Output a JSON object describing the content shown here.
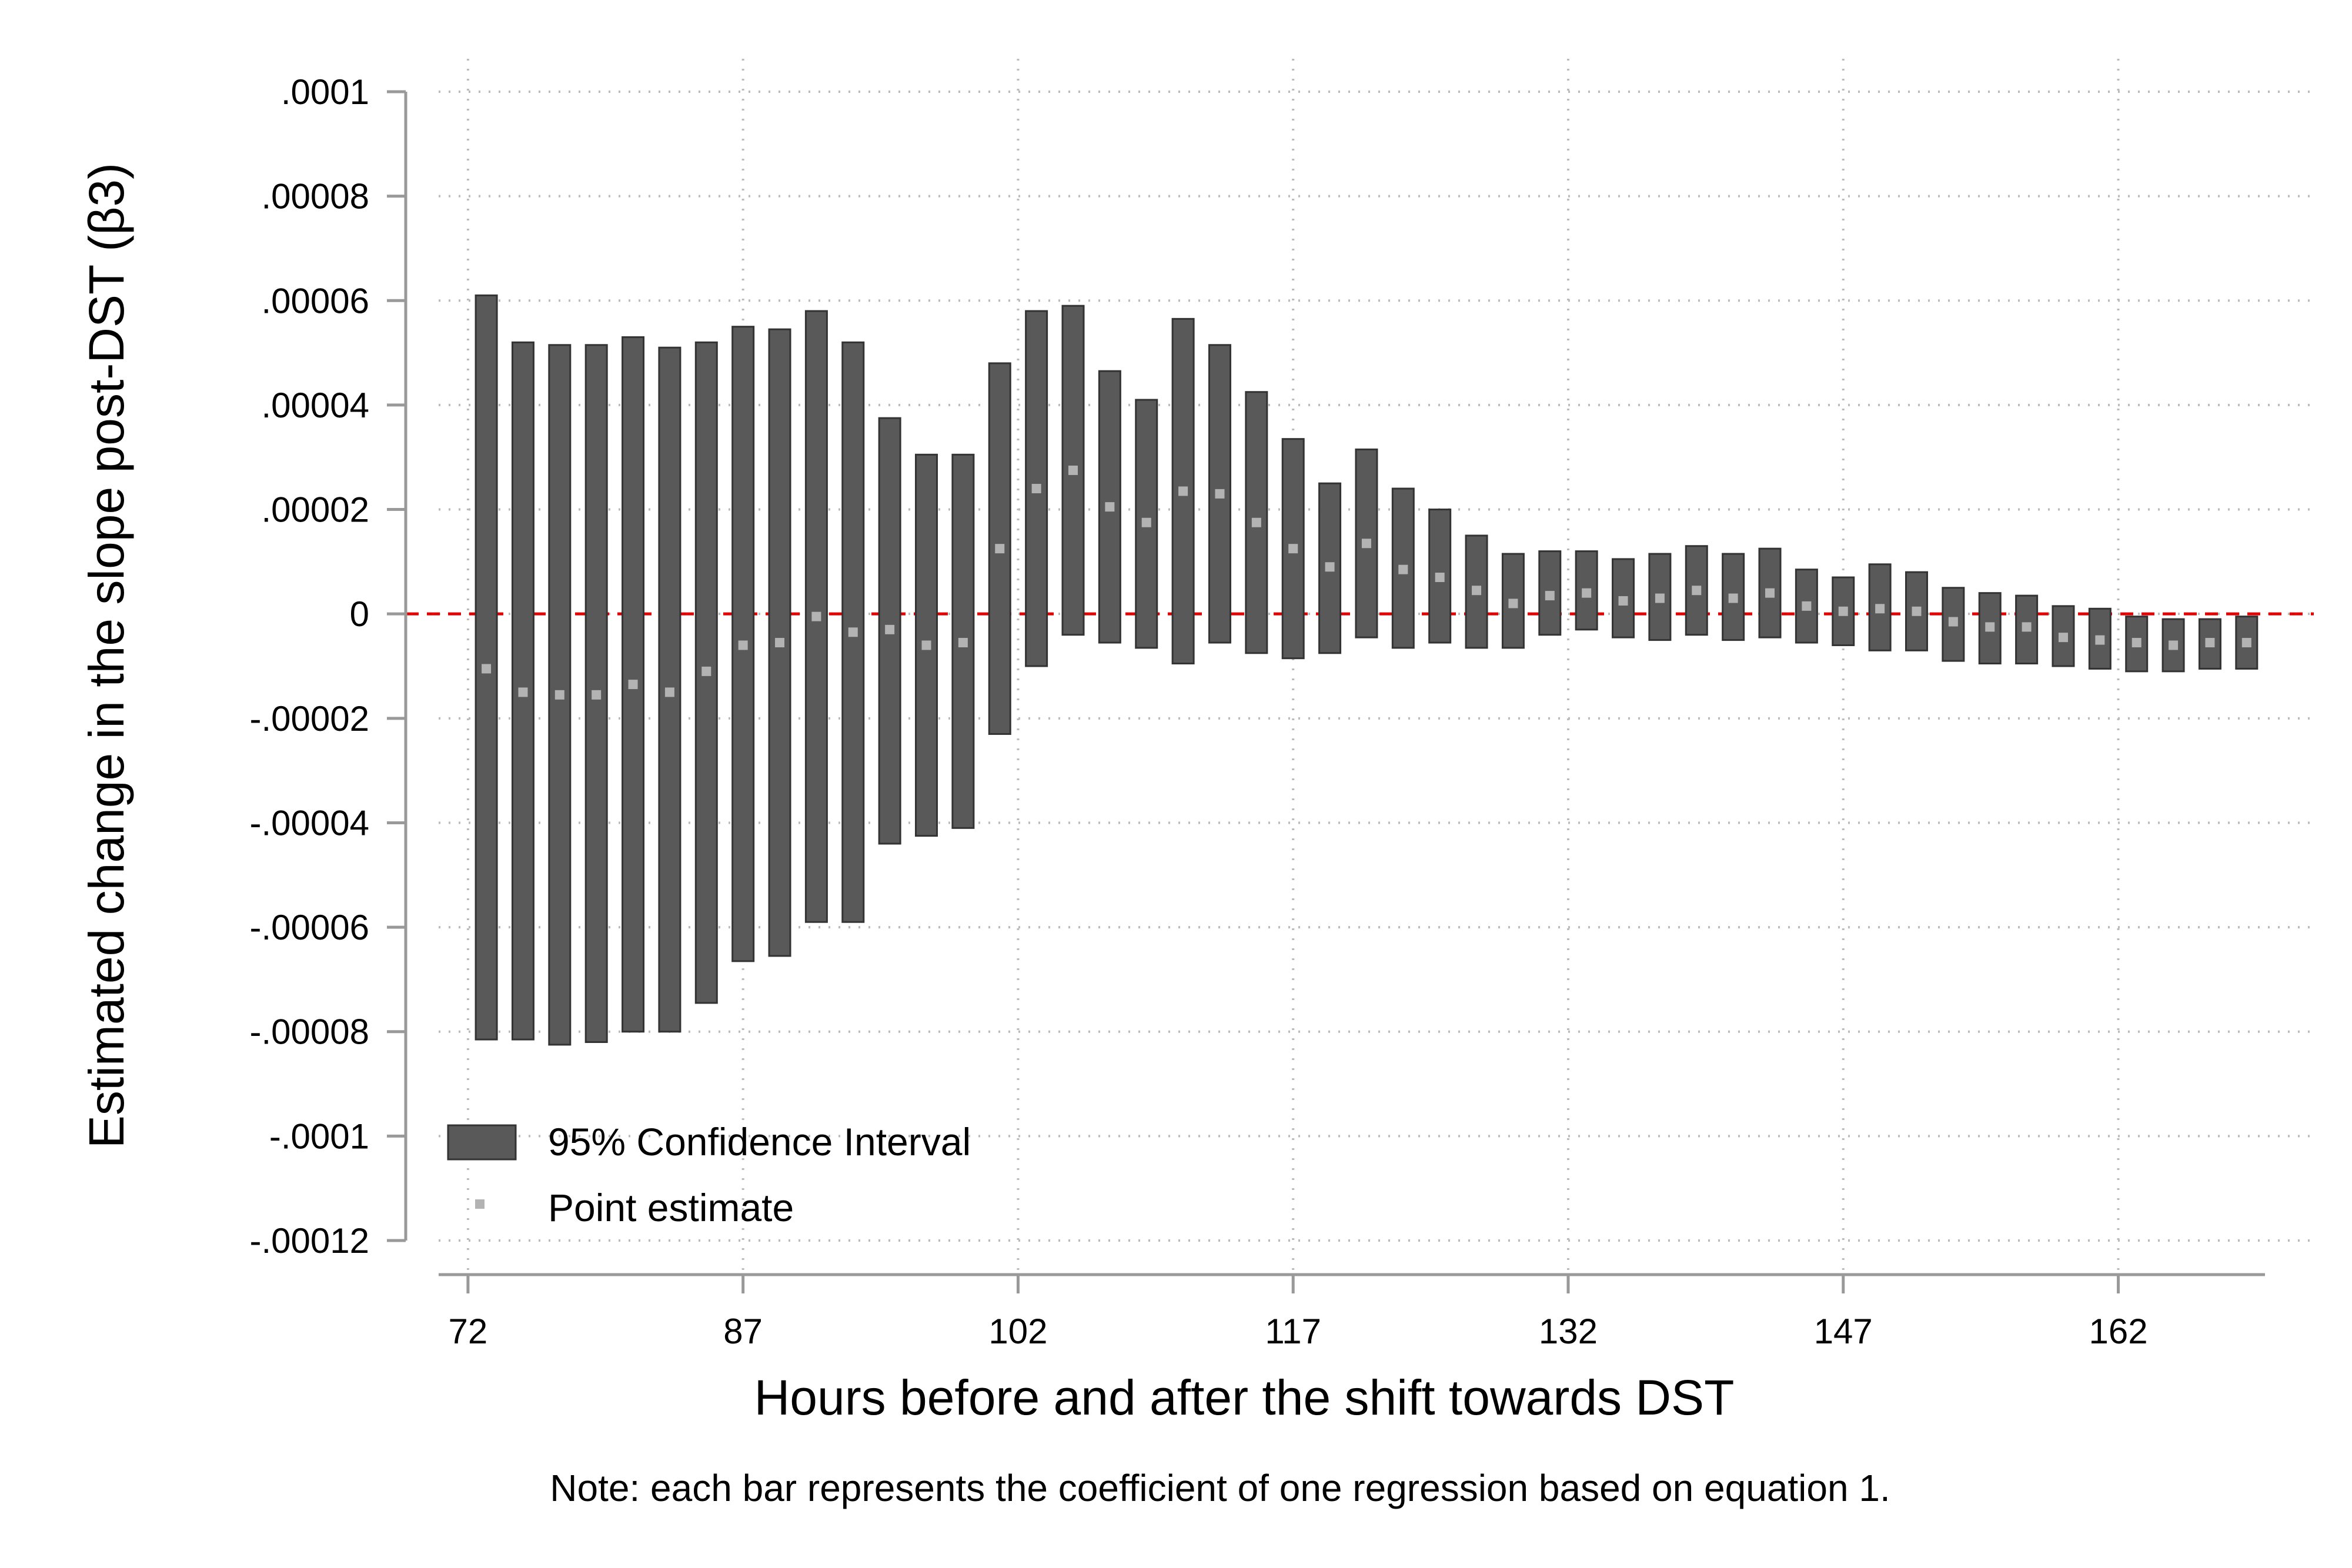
{
  "chart_data": {
    "type": "range-bar",
    "xlabel": "Hours before and after the shift towards DST",
    "ylabel": "Estimated change in the slope post-DST (β3)",
    "note": "Note: each bar represents the coefficient of one regression based on equation 1.",
    "xlim": [
      70.4,
      170.0
    ],
    "ylim": [
      -0.00012,
      0.0001
    ],
    "x_ticks": [
      72,
      87,
      102,
      117,
      132,
      147,
      162
    ],
    "y_ticks": [
      {
        "value": 0.0001,
        "label": ".0001"
      },
      {
        "value": 8e-05,
        "label": ".00008"
      },
      {
        "value": 6e-05,
        "label": ".00006"
      },
      {
        "value": 4e-05,
        "label": ".00004"
      },
      {
        "value": 2e-05,
        "label": ".00002"
      },
      {
        "value": 0,
        "label": "0"
      },
      {
        "value": -2e-05,
        "label": "-.00002"
      },
      {
        "value": -4e-05,
        "label": "-.00004"
      },
      {
        "value": -6e-05,
        "label": "-.00006"
      },
      {
        "value": -8e-05,
        "label": "-.00008"
      },
      {
        "value": -0.0001,
        "label": "-.0001"
      },
      {
        "value": -0.00012,
        "label": "-.00012"
      }
    ],
    "grid": true,
    "reference_line": {
      "y": 0,
      "style": "dashed",
      "color": "#e00000"
    },
    "colors": {
      "ci_bar": "#595959",
      "point": "#b3b3b3",
      "axis": "#999999",
      "grid": "#bbbbbb"
    },
    "legend": {
      "position": "bottom-left",
      "items": [
        {
          "label": "95% Confidence Interval",
          "marker": "bar"
        },
        {
          "label": "Point estimate",
          "marker": "square"
        }
      ]
    },
    "series": [
      {
        "name": "95% Confidence Interval",
        "x": [
          73,
          75,
          77,
          79,
          81,
          83,
          85,
          87,
          89,
          91,
          93,
          95,
          97,
          99,
          101,
          103,
          105,
          107,
          109,
          111,
          113,
          115,
          117,
          119,
          121,
          123,
          125,
          127,
          129,
          131,
          133,
          135,
          137,
          139,
          141,
          143,
          145,
          147,
          149,
          151,
          153,
          155,
          157,
          159,
          161,
          163,
          165,
          167,
          169
        ],
        "low": [
          -8.15e-05,
          -8.15e-05,
          -8.25e-05,
          -8.2e-05,
          -8e-05,
          -8e-05,
          -7.45e-05,
          -6.65e-05,
          -6.55e-05,
          -5.9e-05,
          -5.9e-05,
          -4.4e-05,
          -4.25e-05,
          -4.1e-05,
          -2.3e-05,
          -1e-05,
          -4e-06,
          -5.5e-06,
          -6.5e-06,
          -9.5e-06,
          -5.5e-06,
          -7.5e-06,
          -8.5e-06,
          -7.5e-06,
          -4.5e-06,
          -6.5e-06,
          -5.5e-06,
          -6.5e-06,
          -6.5e-06,
          -4e-06,
          -3e-06,
          -4.5e-06,
          -5e-06,
          -4e-06,
          -5e-06,
          -4.5e-06,
          -5.5e-06,
          -6e-06,
          -7e-06,
          -7e-06,
          -9e-06,
          -9.5e-06,
          -9.5e-06,
          -1e-05,
          -1.05e-05,
          -1.1e-05,
          -1.1e-05,
          -1.05e-05,
          -1.05e-05
        ],
        "high": [
          6.1e-05,
          5.2e-05,
          5.15e-05,
          5.15e-05,
          5.3e-05,
          5.1e-05,
          5.2e-05,
          5.5e-05,
          5.45e-05,
          5.8e-05,
          5.2e-05,
          3.75e-05,
          3.05e-05,
          3.05e-05,
          4.8e-05,
          5.8e-05,
          5.9e-05,
          4.65e-05,
          4.1e-05,
          5.65e-05,
          5.15e-05,
          4.25e-05,
          3.35e-05,
          2.5e-05,
          3.15e-05,
          2.4e-05,
          2e-05,
          1.5e-05,
          1.15e-05,
          1.2e-05,
          1.2e-05,
          1.05e-05,
          1.15e-05,
          1.3e-05,
          1.15e-05,
          1.25e-05,
          8.5e-06,
          7e-06,
          9.5e-06,
          8e-06,
          5e-06,
          4e-06,
          3.5e-06,
          1.5e-06,
          1e-06,
          -5e-07,
          -1e-06,
          -1e-06,
          -5e-07
        ]
      },
      {
        "name": "Point estimate",
        "x": [
          73,
          75,
          77,
          79,
          81,
          83,
          85,
          87,
          89,
          91,
          93,
          95,
          97,
          99,
          101,
          103,
          105,
          107,
          109,
          111,
          113,
          115,
          117,
          119,
          121,
          123,
          125,
          127,
          129,
          131,
          133,
          135,
          137,
          139,
          141,
          143,
          145,
          147,
          149,
          151,
          153,
          155,
          157,
          159,
          161,
          163,
          165,
          167,
          169
        ],
        "values": [
          -1.05e-05,
          -1.5e-05,
          -1.55e-05,
          -1.55e-05,
          -1.35e-05,
          -1.5e-05,
          -1.1e-05,
          -6e-06,
          -5.5e-06,
          -5e-07,
          -3.5e-06,
          -3e-06,
          -6e-06,
          -5.5e-06,
          1.25e-05,
          2.4e-05,
          2.75e-05,
          2.05e-05,
          1.75e-05,
          2.35e-05,
          2.3e-05,
          1.75e-05,
          1.25e-05,
          9e-06,
          1.35e-05,
          8.5e-06,
          7e-06,
          4.5e-06,
          2e-06,
          3.5e-06,
          4e-06,
          2.5e-06,
          3e-06,
          4.5e-06,
          3e-06,
          4e-06,
          1.5e-06,
          5e-07,
          1e-06,
          5e-07,
          -1.5e-06,
          -2.5e-06,
          -2.5e-06,
          -4.5e-06,
          -5e-06,
          -5.5e-06,
          -6e-06,
          -5.5e-06,
          -5.5e-06
        ]
      }
    ]
  }
}
